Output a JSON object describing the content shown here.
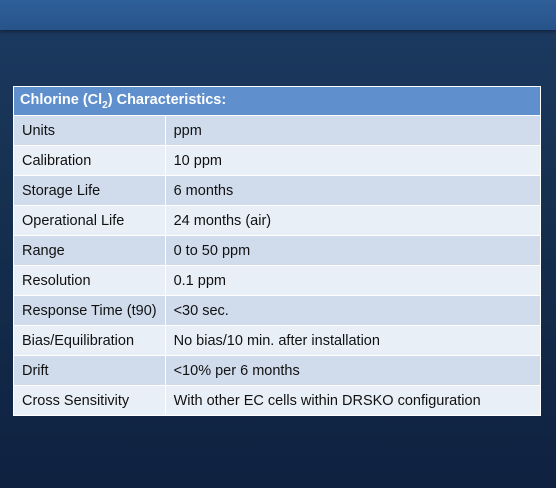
{
  "table": {
    "header": {
      "prefix": "Chlorine (Cl",
      "subscript": "2",
      "suffix": ") Characteristics:"
    },
    "rows": [
      {
        "label": "Units",
        "value": "ppm"
      },
      {
        "label": "Calibration",
        "value": "10 ppm"
      },
      {
        "label": "Storage Life",
        "value": "6 months"
      },
      {
        "label": "Operational Life",
        "value": "24 months (air)"
      },
      {
        "label": "Range",
        "value": "0 to 50 ppm"
      },
      {
        "label": "Resolution",
        "value": "0.1 ppm"
      },
      {
        "label": "Response Time (t90)",
        "value": "<30 sec."
      },
      {
        "label": "Bias/Equilibration",
        "value": "No bias/10 min. after installation"
      },
      {
        "label": "Drift",
        "value": "<10% per 6 months"
      },
      {
        "label": "Cross Sensitivity",
        "value": "With other EC cells within DRSKO configuration"
      }
    ]
  },
  "colors": {
    "header_bg": "#5f8fcc",
    "row_dark": "#d0dcec",
    "row_light": "#e9eff7",
    "background": "#16304f",
    "top_band": "#2f5f98"
  }
}
